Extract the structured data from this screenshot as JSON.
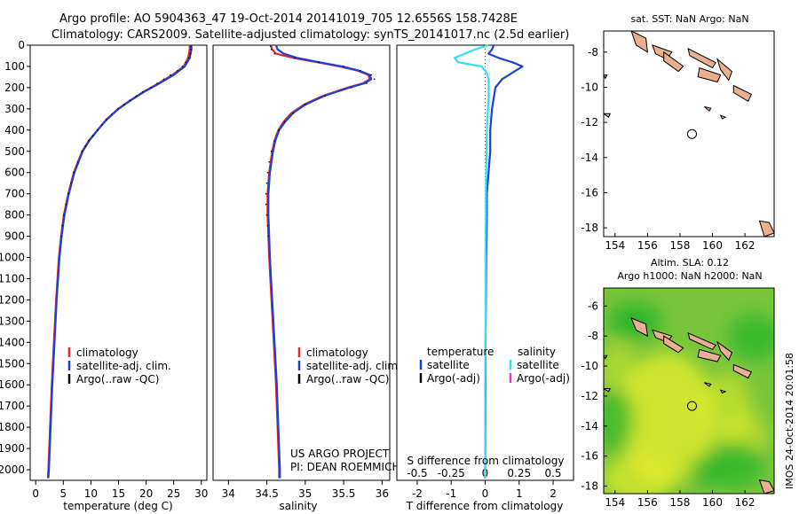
{
  "header": {
    "line1": "Argo profile: AO 5904363_47 19-Oct-2014 20141019_705 12.6556S 158.7428E",
    "line2": "Climatology: CARS2009. Satellite-adjusted climatology: synTS_20141017.nc (2.5d earlier)"
  },
  "colors": {
    "climatology": "#e8262b",
    "satellite": "#1f3fd4",
    "argo": "#000000",
    "salinity_satellite": "#33e0ee",
    "argo_adj_salinity": "#e23ad8",
    "land": "#e9b08f",
    "field_low": "#2ab52a",
    "field_high": "#e4ec2a"
  },
  "chart_data": [
    {
      "id": "temperature",
      "type": "line",
      "xlabel": "temperature (deg C)",
      "xlim": [
        -1,
        31
      ],
      "xticks": [
        0,
        5,
        10,
        15,
        20,
        25,
        30
      ],
      "ylim": [
        0,
        2050
      ],
      "yticks": [
        0,
        100,
        200,
        300,
        400,
        500,
        600,
        700,
        800,
        900,
        1000,
        1100,
        1200,
        1300,
        1400,
        1500,
        1600,
        1700,
        1800,
        1900,
        2000
      ],
      "y_reversed": true,
      "legend": {
        "position": "lower-right",
        "items": [
          "climatology",
          "satellite-adj. clim.",
          "Argo(..raw -QC)"
        ]
      },
      "series": [
        {
          "name": "climatology",
          "color_key": "climatology",
          "depth": [
            0,
            20,
            60,
            100,
            140,
            180,
            220,
            260,
            300,
            350,
            400,
            450,
            500,
            600,
            700,
            800,
            900,
            1000,
            1200,
            1400,
            1600,
            1800,
            2000,
            2040
          ],
          "values": [
            27.9,
            27.9,
            27.6,
            26.8,
            24.8,
            22.2,
            19.5,
            17.1,
            14.9,
            12.8,
            11.2,
            9.6,
            8.4,
            6.9,
            5.9,
            5.1,
            4.6,
            4.2,
            3.7,
            3.3,
            2.9,
            2.6,
            2.3,
            2.2
          ]
        },
        {
          "name": "satellite-adj. clim.",
          "color_key": "satellite",
          "depth": [
            0,
            20,
            60,
            100,
            140,
            180,
            220,
            260,
            300,
            350,
            400,
            450,
            500,
            600,
            700,
            800,
            900,
            1000,
            1200,
            1400,
            1600,
            1800,
            2000,
            2040
          ],
          "values": [
            28.2,
            28.2,
            27.9,
            27.0,
            25.0,
            22.4,
            19.6,
            17.2,
            15.0,
            12.9,
            11.2,
            9.7,
            8.5,
            7.0,
            6.0,
            5.2,
            4.7,
            4.3,
            3.8,
            3.4,
            3.0,
            2.7,
            2.4,
            2.3
          ]
        },
        {
          "name": "Argo(..raw -QC)",
          "color_key": "argo",
          "style": "dots",
          "depth": [
            5,
            20,
            40,
            60,
            80,
            100,
            120,
            140,
            160,
            180,
            200,
            220,
            240,
            260,
            280,
            300,
            325,
            350,
            375,
            400,
            425,
            450,
            475,
            500,
            550,
            600,
            650,
            700,
            750,
            800,
            850,
            900
          ],
          "values": [
            28.1,
            28.1,
            28.0,
            27.7,
            27.2,
            26.6,
            25.7,
            24.4,
            23.2,
            22.0,
            20.8,
            19.4,
            18.2,
            17.1,
            16.0,
            14.9,
            13.8,
            12.8,
            12.0,
            11.2,
            10.4,
            9.6,
            9.0,
            8.4,
            7.6,
            6.9,
            6.4,
            5.9,
            5.5,
            5.1,
            4.8,
            4.6
          ]
        }
      ]
    },
    {
      "id": "salinity",
      "type": "line",
      "xlabel": "salinity",
      "xlim": [
        33.8,
        36.1
      ],
      "xticks": [
        34,
        34.5,
        35,
        35.5,
        36
      ],
      "ylim": [
        0,
        2050
      ],
      "y_reversed": true,
      "legend": {
        "position": "lower-right",
        "items": [
          "climatology",
          "satellite-adj. clim.",
          "Argo(..raw -QC)"
        ]
      },
      "annotation": {
        "line1": "US ARGO PROJECT",
        "line2": "PI: DEAN ROEMMICH"
      },
      "series": [
        {
          "name": "climatology",
          "color_key": "climatology",
          "depth": [
            0,
            20,
            40,
            60,
            80,
            100,
            120,
            140,
            160,
            180,
            200,
            240,
            280,
            320,
            360,
            400,
            450,
            500,
            600,
            700,
            800,
            900,
            1000,
            1200,
            1400,
            1600,
            1800,
            2000,
            2040
          ],
          "values": [
            34.55,
            34.57,
            34.62,
            34.85,
            35.15,
            35.45,
            35.68,
            35.82,
            35.84,
            35.75,
            35.55,
            35.22,
            34.98,
            34.82,
            34.72,
            34.65,
            34.6,
            34.57,
            34.53,
            34.51,
            34.51,
            34.52,
            34.53,
            34.56,
            34.59,
            34.62,
            34.64,
            34.66,
            34.66
          ]
        },
        {
          "name": "satellite-adj. clim.",
          "color_key": "satellite",
          "depth": [
            0,
            20,
            40,
            60,
            80,
            100,
            120,
            140,
            160,
            180,
            200,
            240,
            280,
            320,
            360,
            400,
            450,
            500,
            600,
            700,
            800,
            900,
            1000,
            1200,
            1400,
            1600,
            1800,
            2000,
            2040
          ],
          "values": [
            34.62,
            34.64,
            34.72,
            34.9,
            35.18,
            35.48,
            35.7,
            35.84,
            35.86,
            35.77,
            35.57,
            35.24,
            35.0,
            34.84,
            34.74,
            34.66,
            34.61,
            34.58,
            34.54,
            34.52,
            34.52,
            34.53,
            34.54,
            34.57,
            34.6,
            34.63,
            34.65,
            34.67,
            34.67
          ]
        },
        {
          "name": "Argo(..raw -QC)",
          "color_key": "argo",
          "style": "dots",
          "depth": [
            5,
            20,
            40,
            60,
            80,
            100,
            120,
            140,
            160,
            180,
            200,
            240,
            280,
            320,
            360,
            400,
            450,
            500,
            550,
            600,
            650,
            700,
            750,
            800,
            850,
            900
          ],
          "values": [
            34.55,
            34.56,
            34.6,
            34.86,
            35.18,
            35.5,
            35.72,
            35.86,
            35.9,
            35.8,
            35.6,
            35.26,
            35.0,
            34.84,
            34.73,
            34.66,
            34.6,
            34.56,
            34.53,
            34.51,
            34.5,
            34.49,
            34.49,
            34.5,
            34.51,
            34.52
          ]
        }
      ]
    },
    {
      "id": "difference",
      "type": "line",
      "xlabel": "T difference from climatology",
      "toplabel": "S difference from climatology",
      "xlim": [
        -2.6,
        2.6
      ],
      "xticks": [
        -2,
        -1,
        0,
        1,
        2
      ],
      "top_xticks": [
        {
          "label": "-0.5",
          "value": -2
        },
        {
          "label": "-0.25",
          "value": -1
        },
        {
          "label": "0",
          "value": 0
        },
        {
          "label": "0.25",
          "value": 1
        },
        {
          "label": "0.5",
          "value": 2
        }
      ],
      "ylim": [
        0,
        2050
      ],
      "y_reversed": true,
      "legend": {
        "position": "lower",
        "temperature_heading": "temperature",
        "salinity_heading": "salinity",
        "items": [
          "satellite",
          "Argo(-adj)",
          "satellite",
          "Argo(-adj)"
        ]
      },
      "series": [
        {
          "name": "T satellite",
          "color_key": "satellite",
          "depth": [
            0,
            20,
            40,
            60,
            80,
            100,
            130,
            160,
            200,
            250,
            300,
            400,
            500,
            600,
            700,
            800,
            1000,
            1200,
            1400,
            1600,
            2040
          ],
          "values": [
            0.25,
            0.2,
            0.1,
            0.4,
            0.8,
            1.1,
            0.8,
            0.5,
            0.3,
            0.25,
            0.2,
            0.15,
            0.15,
            0.1,
            0.05,
            0.05,
            0.03,
            0.02,
            0.01,
            0.01,
            0.0
          ]
        },
        {
          "name": "S satellite",
          "color_key": "salinity_satellite",
          "depth": [
            0,
            20,
            40,
            60,
            80,
            100,
            130,
            160,
            200,
            250,
            300,
            400,
            500,
            600,
            700,
            800,
            1000,
            1200,
            1400,
            1600,
            2040
          ],
          "values": [
            0.1,
            -0.3,
            -0.6,
            -0.9,
            -0.8,
            -0.1,
            0.05,
            0.1,
            0.1,
            0.1,
            0.08,
            0.05,
            0.04,
            0.03,
            0.02,
            0.02,
            0.01,
            0.01,
            0.01,
            0.0,
            0.0
          ]
        }
      ]
    },
    {
      "id": "sst_map",
      "type": "heatmap",
      "title": "sat. SST: NaN Argo: NaN",
      "xlim": [
        153.3,
        163.8
      ],
      "ylim": [
        -18.5,
        -6.8
      ],
      "xticks": [
        154,
        156,
        158,
        160,
        162
      ],
      "yticks": [
        -8,
        -10,
        -12,
        -14,
        -16,
        -18
      ],
      "float_position": {
        "lon": 158.74,
        "lat": -12.66
      },
      "field": "none"
    },
    {
      "id": "sla_map",
      "type": "heatmap",
      "title_line1": "Altim. SLA: 0.12",
      "title_line2": "Argo h1000: NaN h2000: NaN",
      "xlim": [
        153.3,
        163.8
      ],
      "ylim": [
        -18.5,
        -4.8
      ],
      "xticks": [
        154,
        156,
        158,
        160,
        162
      ],
      "yticks": [
        -6,
        -8,
        -10,
        -12,
        -14,
        -16,
        -18
      ],
      "float_position": {
        "lon": 158.74,
        "lat": -12.66
      },
      "field": "sea level anomaly (green low to yellow high)"
    }
  ],
  "footer": {
    "imos_credit": "IMOS 24-Oct-2014 20:01:58"
  }
}
